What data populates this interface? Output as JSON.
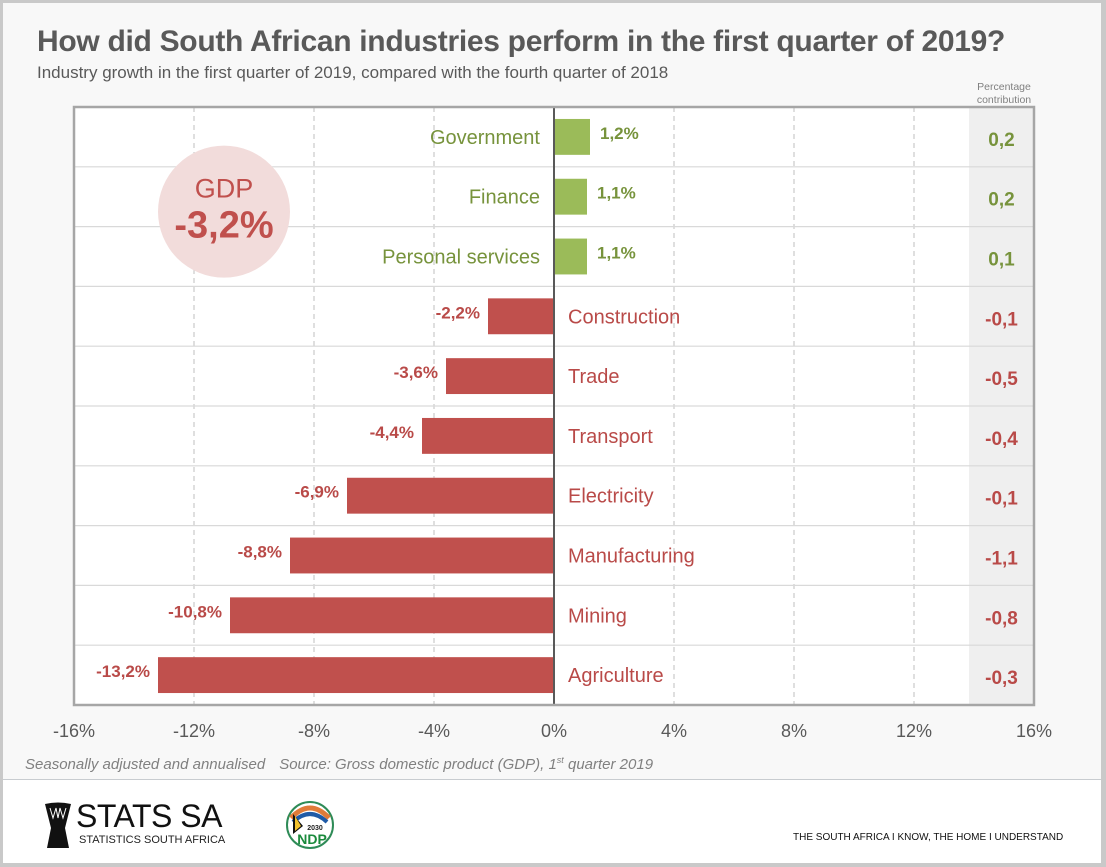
{
  "header": {
    "title": "How did South African industries perform in the first quarter of 2019?",
    "subtitle": "Industry growth in the first quarter of 2019, compared with the fourth quarter of 2018",
    "contribution_header": "Percentage contribution"
  },
  "gdp_badge": {
    "label": "GDP",
    "value": "-3,2%"
  },
  "chart_data": {
    "type": "bar",
    "orientation": "horizontal",
    "title": "How did South African industries perform in the first quarter of 2019?",
    "subtitle": "Industry growth in the first quarter of 2019, compared with the fourth quarter of 2018",
    "xlabel": "",
    "ylabel": "",
    "xlim": [
      -16,
      16
    ],
    "xticks": [
      -16,
      -12,
      -8,
      -4,
      0,
      4,
      8,
      12,
      16
    ],
    "xtick_labels": [
      "-16%",
      "-12%",
      "-8%",
      "-4%",
      "0%",
      "4%",
      "8%",
      "12%",
      "16%"
    ],
    "grid": "vertical dashed",
    "categories": [
      "Government",
      "Finance",
      "Personal services",
      "Construction",
      "Trade",
      "Transport",
      "Electricity",
      "Manufacturing",
      "Mining",
      "Agriculture"
    ],
    "values": [
      1.2,
      1.1,
      1.1,
      -2.2,
      -3.6,
      -4.4,
      -6.9,
      -8.8,
      -10.8,
      -13.2
    ],
    "value_labels": [
      "1,2%",
      "1,1%",
      "1,1%",
      "-2,2%",
      "-3,6%",
      "-4,4%",
      "-6,9%",
      "-8,8%",
      "-10,8%",
      "-13,2%"
    ],
    "contribution_header": "Percentage contribution",
    "contributions": [
      0.2,
      0.2,
      0.1,
      -0.1,
      -0.5,
      -0.4,
      -0.1,
      -1.1,
      -0.8,
      -0.3
    ],
    "contribution_labels": [
      "0,2",
      "0,2",
      "0,1",
      "-0,1",
      "-0,5",
      "-0,4",
      "-0,1",
      "-1,1",
      "-0,8",
      "-0,3"
    ],
    "colors": {
      "positive": "#9bbb59",
      "positive_text": "#77933c",
      "negative": "#c0504d",
      "negative_text": "#b94a48"
    }
  },
  "footnote": {
    "note": "Seasonally adjusted and annualised",
    "source_prefix": "Source: Gross domestic product (GDP), 1",
    "source_sup": "st",
    "source_suffix": " quarter 2019"
  },
  "footer": {
    "logo_name": "STATS SA",
    "logo_sub": "STATISTICS SOUTH AFRICA",
    "ndp_year": "2030",
    "ndp_label": "NDP",
    "tagline": "THE SOUTH AFRICA I KNOW, THE HOME I UNDERSTAND"
  }
}
